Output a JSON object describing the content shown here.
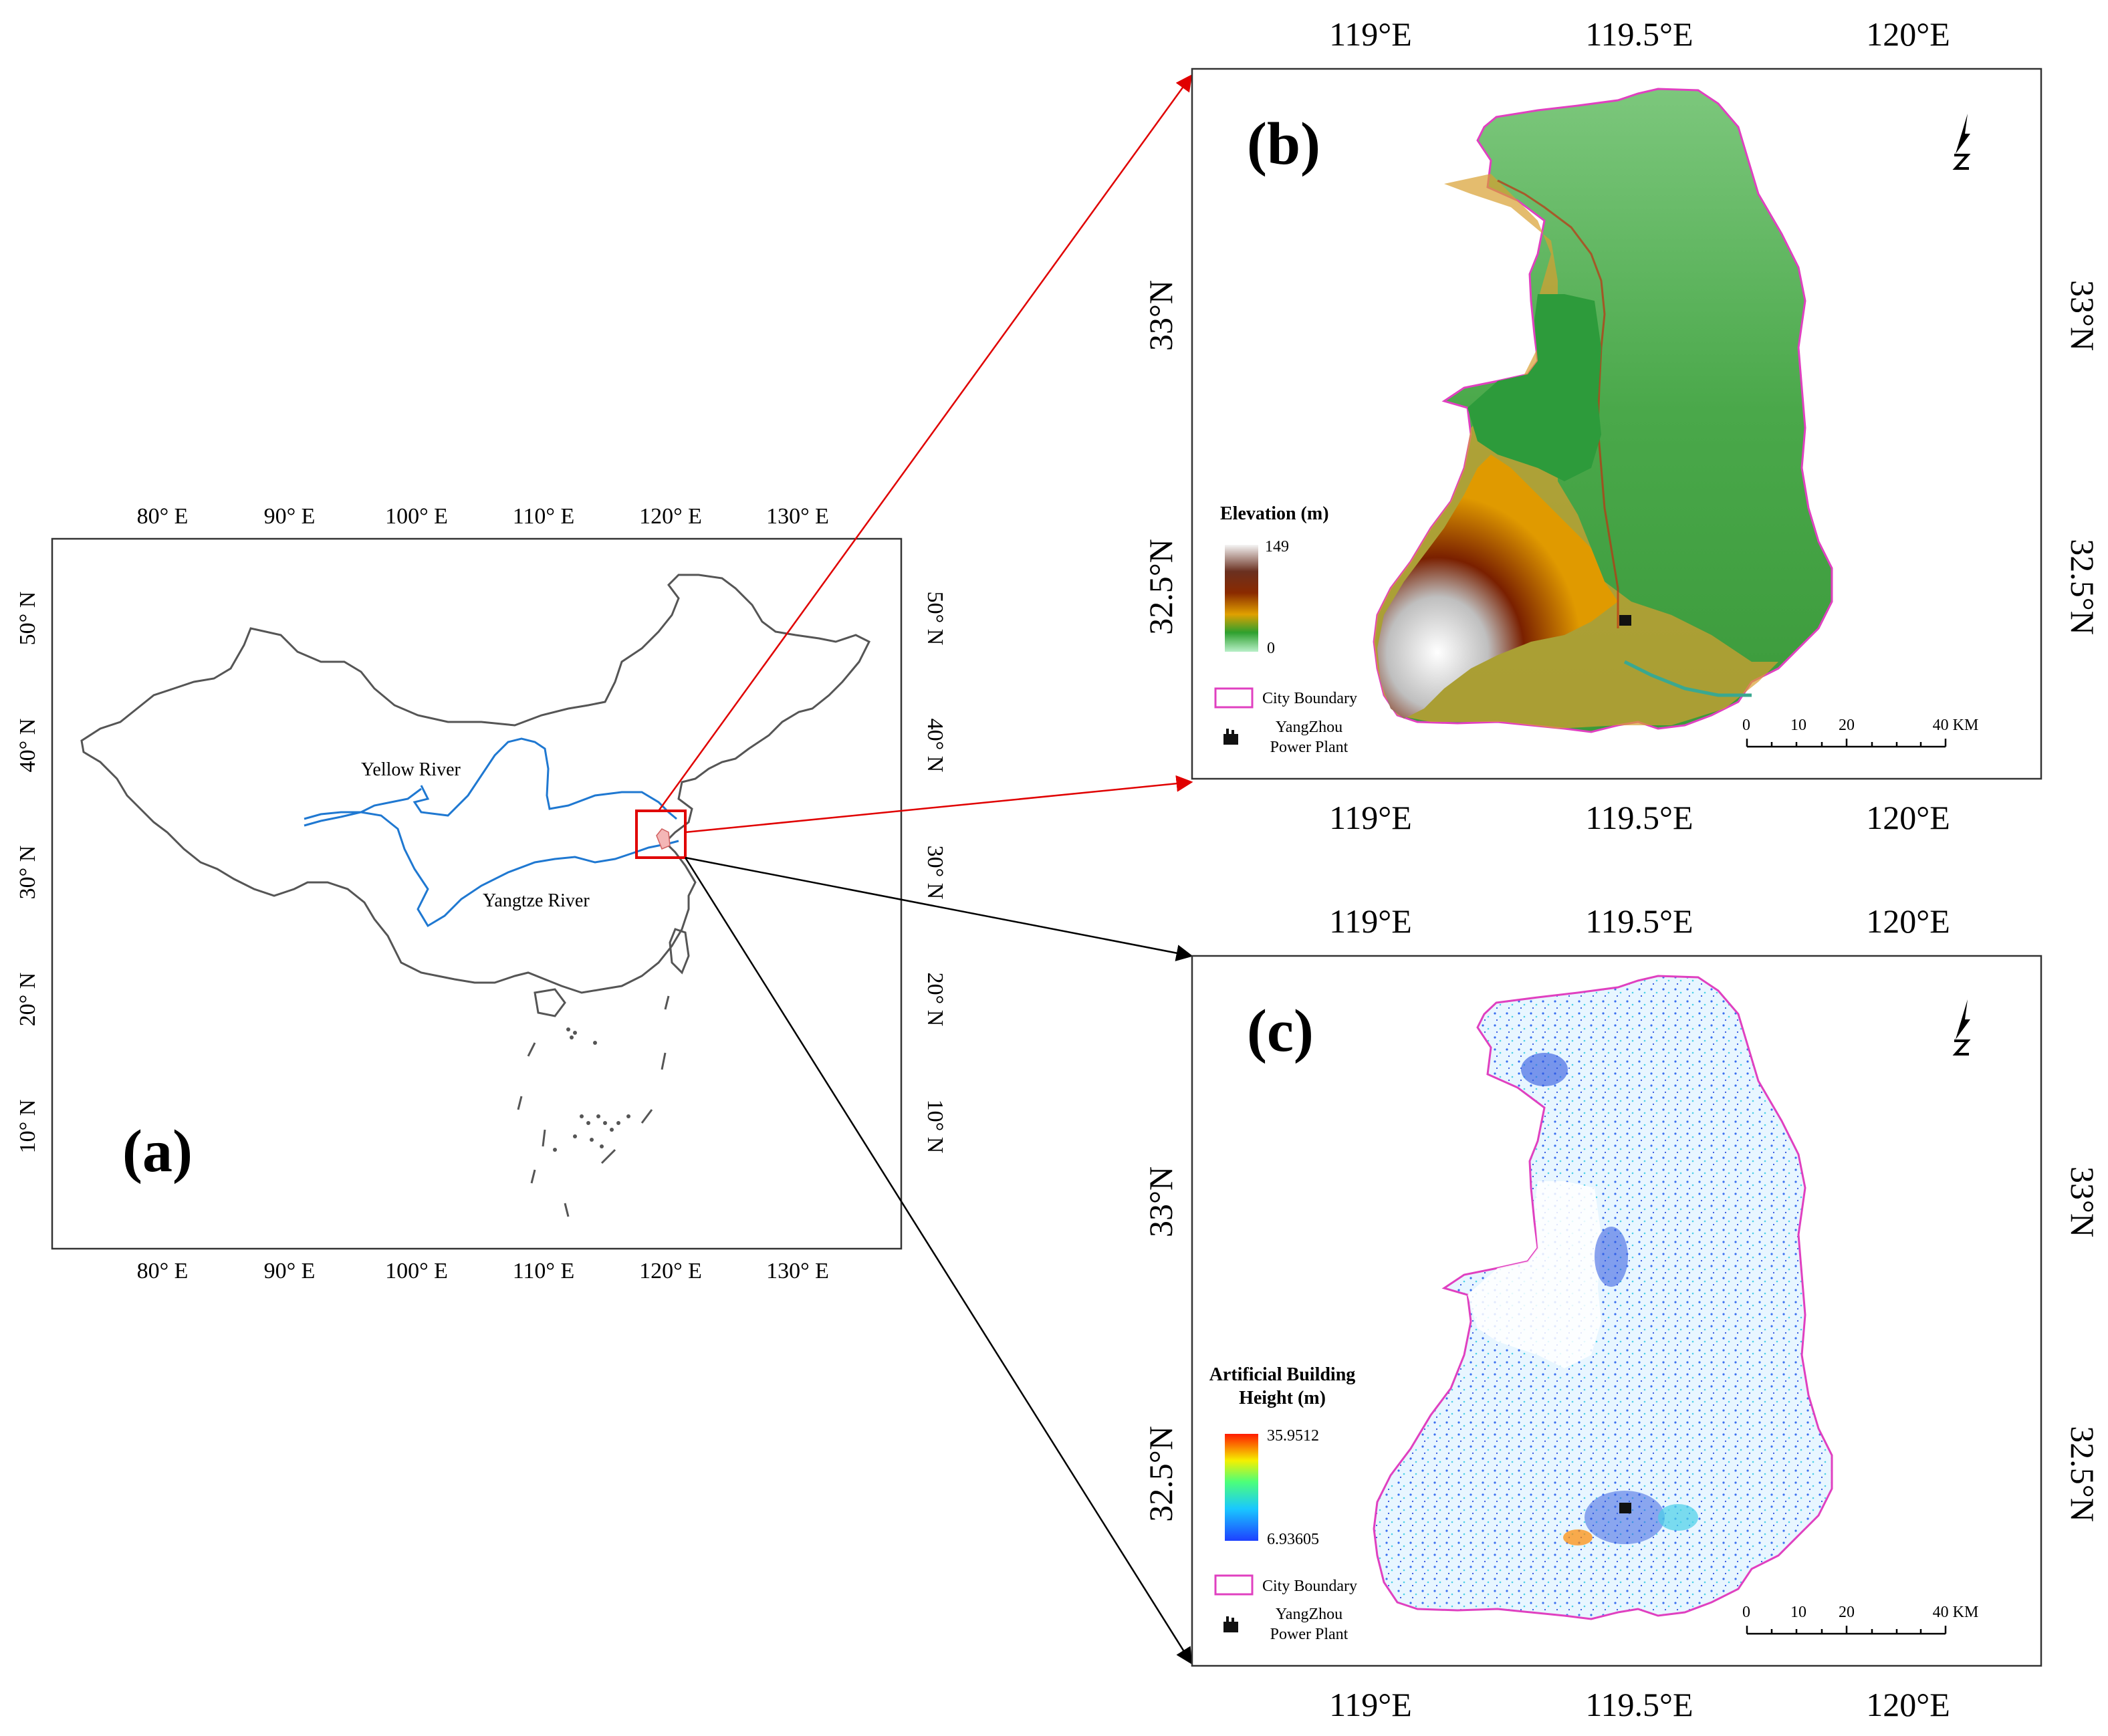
{
  "panel_a": {
    "letter": "(a)",
    "lon_ticks": [
      "80° E",
      "90° E",
      "100° E",
      "110° E",
      "120° E",
      "130° E"
    ],
    "lat_ticks": [
      "50° N",
      "40° N",
      "30° N",
      "20° N",
      "10° N"
    ],
    "rivers": {
      "yellow": "Yellow River",
      "yangtze": "Yangtze River"
    },
    "colors": {
      "border": "#555555",
      "river": "#1f78d1",
      "highlight": "#e00000"
    }
  },
  "panel_b": {
    "letter": "(b)",
    "lon_ticks": [
      "119°E",
      "119.5°E",
      "120°E"
    ],
    "lat_ticks": [
      "33°N",
      "32.5°N"
    ],
    "legend": {
      "title": "Elevation (m)",
      "max": "149",
      "min": "0",
      "boundary": "City Boundary",
      "plant_line1": "YangZhou",
      "plant_line2": "Power Plant"
    },
    "scale_bar": {
      "labels": [
        "0",
        "10",
        "20",
        "40 KM"
      ]
    },
    "colors": {
      "boundary": "#e040c0",
      "low": "#b8f0c8",
      "mid": "#2ea02e",
      "high": "#7a1a00",
      "top": "#f5f5f5"
    }
  },
  "panel_c": {
    "letter": "(c)",
    "lon_ticks": [
      "119°E",
      "119.5°E",
      "120°E"
    ],
    "lat_ticks": [
      "33°N",
      "32.5°N"
    ],
    "legend": {
      "title_line1": "Artificial Building",
      "title_line2": "Height (m)",
      "max": "35.9512",
      "min": "6.93605",
      "boundary": "City Boundary",
      "plant_line1": "YangZhou",
      "plant_line2": "Power Plant"
    },
    "scale_bar": {
      "labels": [
        "0",
        "10",
        "20",
        "40 KM"
      ]
    },
    "colors": {
      "boundary": "#e040c0",
      "low": "#1e40ff",
      "high": "#ff1a00"
    }
  },
  "arrows": {
    "b_color": "#e00000",
    "c_color": "#000000"
  }
}
